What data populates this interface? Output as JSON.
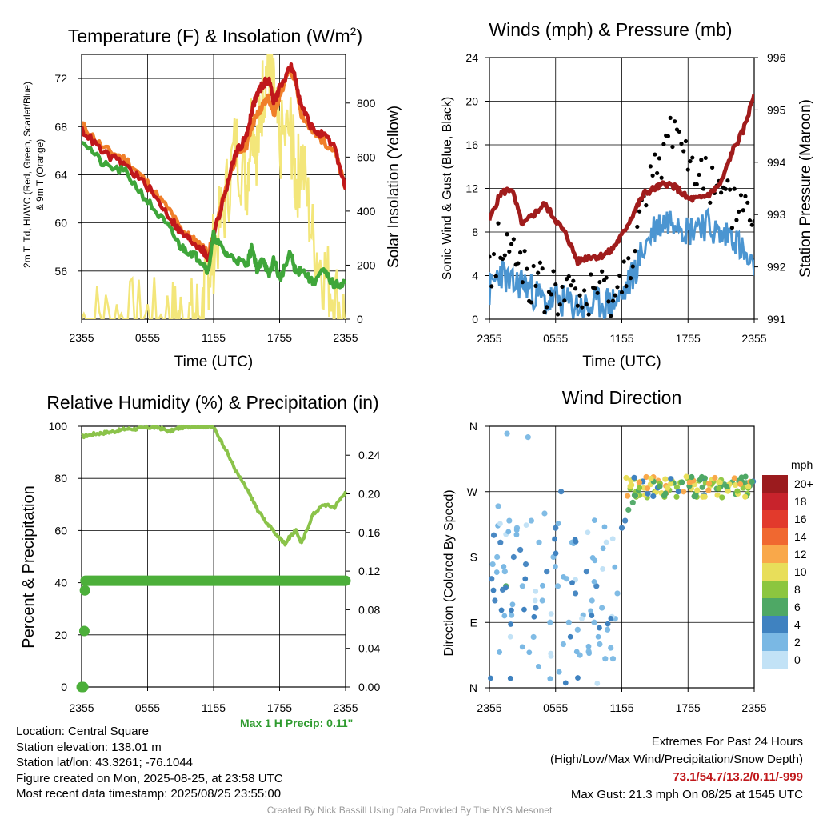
{
  "chart_data": [
    {
      "type": "line",
      "title": "Temperature (F) & Insolation (W/m²)",
      "xlabel": "Time (UTC)",
      "ylabel": "2m T, T_d, HI/WC (Red, Green, Scarlet/Blue) & 9m T (Orange)",
      "y2label": "Solar Insolation (Yellow)",
      "x_ticks": [
        "2355",
        "0555",
        "1155",
        "1755",
        "2355"
      ],
      "ylim": [
        52,
        74
      ],
      "y_ticks": [
        56,
        60,
        64,
        68,
        72
      ],
      "y2lim": [
        0,
        980
      ],
      "y2_ticks": [
        0,
        200,
        400,
        600,
        800
      ],
      "x_hours": [
        0,
        2,
        4,
        6,
        8,
        9,
        10,
        11,
        11.5,
        12,
        13,
        14,
        15,
        15.5,
        16,
        16.5,
        17,
        17.5,
        18,
        19,
        19.5,
        20,
        21,
        22,
        23,
        24
      ],
      "series": [
        {
          "name": "9m T",
          "color": "#f07f2a",
          "values": [
            68.2,
            66.2,
            65.3,
            63.3,
            61.0,
            59.5,
            58.7,
            58.0,
            57.3,
            59.0,
            62.5,
            65.5,
            66.5,
            68.2,
            69.0,
            69.8,
            70.5,
            69.0,
            70.6,
            72.8,
            71.5,
            69.0,
            67.5,
            66.8,
            66.0,
            62.8
          ]
        },
        {
          "name": "2m T",
          "color": "#c0181b",
          "values": [
            67.8,
            65.8,
            64.8,
            63.0,
            60.5,
            59.2,
            58.5,
            57.8,
            57.0,
            59.0,
            62.3,
            65.8,
            67.2,
            69.5,
            70.8,
            71.5,
            72.0,
            70.0,
            71.2,
            73.0,
            71.8,
            69.6,
            67.8,
            67.2,
            66.3,
            62.8
          ]
        },
        {
          "name": "2m Td",
          "color": "#3fa63a",
          "values": [
            67.0,
            64.8,
            64.2,
            61.8,
            59.5,
            58.0,
            57.5,
            56.8,
            56.0,
            59.0,
            57.5,
            57.0,
            56.5,
            58.0,
            56.0,
            57.2,
            55.5,
            57.0,
            55.3,
            57.5,
            55.8,
            56.2,
            55.0,
            56.0,
            54.8,
            55.1
          ]
        },
        {
          "name": "Solar Insolation",
          "axis": "right",
          "color": "#f3e67a",
          "values": [
            0,
            0,
            0,
            0,
            0,
            0,
            5,
            40,
            180,
            250,
            420,
            650,
            500,
            780,
            620,
            860,
            950,
            800,
            650,
            700,
            500,
            600,
            300,
            180,
            90,
            0
          ]
        }
      ]
    },
    {
      "type": "line",
      "title": "Winds (mph) & Pressure (mb)",
      "xlabel": "Time (UTC)",
      "ylabel": "Sonic Wind & Gust (Blue, Black)",
      "y2label": "Station Pressure (Maroon)",
      "x_ticks": [
        "2355",
        "0555",
        "1155",
        "1755",
        "2355"
      ],
      "ylim": [
        0,
        24
      ],
      "y_ticks": [
        0,
        4,
        8,
        12,
        16,
        20,
        24
      ],
      "y2lim": [
        991,
        996
      ],
      "y2_ticks": [
        991,
        992,
        993,
        994,
        995,
        996
      ],
      "x_hours": [
        0,
        1,
        2,
        3,
        4,
        5,
        6,
        7,
        8,
        9,
        10,
        11,
        12,
        13,
        14,
        15,
        16,
        17,
        18,
        19,
        20,
        21,
        22,
        23,
        24
      ],
      "series": [
        {
          "name": "Sonic Wind",
          "color": "#4b95d1",
          "values": [
            2.5,
            4.5,
            3.0,
            3.5,
            2.5,
            1.5,
            1.8,
            1.5,
            1.2,
            1.0,
            1.5,
            1.5,
            2.0,
            4.0,
            6.5,
            8.5,
            9.0,
            9.5,
            8.0,
            9.0,
            8.5,
            7.5,
            8.0,
            6.0,
            4.0
          ]
        },
        {
          "name": "Gust",
          "color": "#000000",
          "values": [
            4.0,
            7.5,
            6.0,
            5.5,
            3.0,
            2.5,
            2.5,
            2.0,
            2.0,
            2.0,
            2.5,
            2.0,
            3.0,
            7.0,
            10.0,
            13.0,
            16.0,
            18.5,
            14.0,
            15.0,
            12.0,
            11.0,
            10.0,
            11.0,
            9.0
          ]
        },
        {
          "name": "Station Pressure",
          "axis": "right",
          "color": "#a01c1c",
          "values": [
            992.9,
            993.4,
            993.5,
            992.8,
            993.0,
            993.2,
            992.9,
            992.6,
            992.1,
            992.2,
            992.2,
            992.3,
            992.6,
            993.0,
            993.4,
            993.5,
            993.6,
            993.5,
            993.3,
            993.3,
            993.4,
            993.6,
            994.2,
            994.6,
            995.3
          ]
        }
      ]
    },
    {
      "type": "line",
      "title": "Relative Humidity (%) & Precipitation (in)",
      "xlabel": "",
      "ylabel": "Percent & Precipitation",
      "x_ticks": [
        "2355",
        "0555",
        "1155",
        "1755",
        "2355"
      ],
      "ylim": [
        0,
        100
      ],
      "y_ticks": [
        0,
        20,
        40,
        60,
        80,
        100
      ],
      "y2lim": [
        0,
        0.27
      ],
      "y2_ticks": [
        "0.00",
        "0.04",
        "0.08",
        "0.12",
        "0.16",
        "0.20",
        "0.24"
      ],
      "x_hours": [
        0,
        1,
        2,
        3,
        4,
        5,
        6,
        7,
        8,
        9,
        10,
        11,
        12,
        13,
        14,
        15,
        15.5,
        16,
        17,
        18,
        18.5,
        19,
        19.5,
        20,
        21,
        22,
        23,
        24
      ],
      "series": [
        {
          "name": "Relative Humidity",
          "color": "#8bc34a",
          "values": [
            96,
            97,
            97.5,
            98,
            99,
            99,
            99.5,
            99.5,
            98,
            99.5,
            100,
            100,
            99.5,
            92,
            83,
            76,
            72,
            68,
            62,
            57,
            55,
            58,
            60,
            55,
            66,
            70,
            69,
            75
          ]
        },
        {
          "name": "Precipitation",
          "axis": "right",
          "color": "#4caf3a",
          "values": [
            0.0,
            0.11,
            0.11,
            0.11,
            0.11,
            0.11,
            0.11,
            0.11,
            0.11,
            0.11,
            0.11,
            0.11,
            0.11,
            0.11,
            0.11,
            0.11,
            0.11,
            0.11,
            0.11,
            0.11,
            0.11,
            0.11,
            0.11,
            0.11,
            0.11,
            0.11,
            0.11,
            0.11
          ]
        }
      ],
      "early_precip_points": [
        [
          0,
          0.0
        ],
        [
          0.15,
          0.0
        ],
        [
          0.25,
          0.058
        ],
        [
          0.3,
          0.1
        ]
      ]
    },
    {
      "type": "scatter",
      "title": "Wind Direction",
      "ylabel": "Direction (Colored By Speed)",
      "x_ticks": [
        "2355",
        "0555",
        "1155",
        "1755",
        "2355"
      ],
      "y_ticks": [
        "N",
        "E",
        "S",
        "W",
        "N"
      ],
      "ylim": [
        0,
        360
      ],
      "color_legend": {
        "unit": "mph",
        "labels": [
          "20+",
          "18",
          "16",
          "14",
          "12",
          "10",
          "8",
          "6",
          "4",
          "2",
          "0"
        ],
        "colors": [
          "#9b1b1e",
          "#c8232c",
          "#e23a2c",
          "#f06830",
          "#f9a84a",
          "#e8de5a",
          "#8cc63f",
          "#4ea865",
          "#3f82c0",
          "#7ab8e4",
          "#c2e2f6"
        ]
      },
      "points": [
        [
          0.2,
          150,
          3
        ],
        [
          0.3,
          170,
          2
        ],
        [
          0.4,
          210,
          4
        ],
        [
          0.5,
          120,
          3
        ],
        [
          0.7,
          180,
          2
        ],
        [
          0.8,
          250,
          1
        ],
        [
          1.0,
          200,
          3
        ],
        [
          1.2,
          135,
          4
        ],
        [
          1.4,
          160,
          2
        ],
        [
          1.5,
          140,
          6
        ],
        [
          1.6,
          350,
          1
        ],
        [
          1.8,
          230,
          2
        ],
        [
          2.0,
          100,
          2
        ],
        [
          2.2,
          180,
          3
        ],
        [
          2.5,
          220,
          2
        ],
        [
          2.8,
          190,
          4
        ],
        [
          3.0,
          140,
          2
        ],
        [
          3.3,
          170,
          3
        ],
        [
          3.5,
          345,
          1
        ],
        [
          3.8,
          230,
          2
        ],
        [
          4.0,
          70,
          2
        ],
        [
          4.2,
          110,
          3
        ],
        [
          4.5,
          200,
          2
        ],
        [
          4.8,
          120,
          1
        ],
        [
          5.0,
          240,
          2
        ],
        [
          5.2,
          160,
          3
        ],
        [
          5.5,
          90,
          1
        ],
        [
          5.8,
          180,
          2
        ],
        [
          6.0,
          220,
          3
        ],
        [
          6.2,
          140,
          2
        ],
        [
          6.5,
          270,
          3
        ],
        [
          6.7,
          60,
          1
        ],
        [
          7.0,
          150,
          2
        ],
        [
          7.2,
          90,
          1
        ],
        [
          7.5,
          200,
          2
        ],
        [
          7.8,
          130,
          3
        ],
        [
          8.0,
          80,
          2
        ],
        [
          8.2,
          45,
          1
        ],
        [
          8.5,
          100,
          1
        ],
        [
          8.8,
          160,
          3
        ],
        [
          9.0,
          50,
          2
        ],
        [
          9.3,
          120,
          2
        ],
        [
          9.5,
          90,
          1
        ],
        [
          9.7,
          140,
          3
        ],
        [
          10.0,
          60,
          2
        ],
        [
          10.2,
          110,
          1
        ],
        [
          10.5,
          40,
          2
        ],
        [
          10.7,
          80,
          2
        ],
        [
          11.0,
          55,
          1
        ],
        [
          11.2,
          40,
          2
        ],
        [
          11.4,
          95,
          2
        ],
        [
          11.6,
          130,
          1
        ],
        [
          12.0,
          220,
          4
        ],
        [
          12.3,
          230,
          4
        ],
        [
          12.6,
          245,
          5
        ],
        [
          13.0,
          255,
          6
        ],
        [
          13.3,
          270,
          7
        ],
        [
          13.6,
          265,
          8
        ],
        [
          14.0,
          275,
          9
        ],
        [
          14.3,
          262,
          7
        ],
        [
          14.6,
          280,
          10
        ],
        [
          15.0,
          270,
          8
        ],
        [
          15.3,
          285,
          11
        ],
        [
          15.6,
          268,
          9
        ],
        [
          16.0,
          278,
          12
        ],
        [
          16.3,
          272,
          8
        ],
        [
          16.6,
          284,
          10
        ],
        [
          17.0,
          276,
          7
        ],
        [
          17.3,
          282,
          9
        ],
        [
          17.6,
          270,
          11
        ],
        [
          18.0,
          288,
          8
        ],
        [
          18.3,
          274,
          10
        ],
        [
          18.6,
          280,
          9
        ],
        [
          19.0,
          285,
          7
        ],
        [
          19.3,
          276,
          6
        ],
        [
          19.6,
          282,
          8
        ],
        [
          20.0,
          278,
          9
        ],
        [
          20.3,
          284,
          7
        ],
        [
          20.6,
          274,
          6
        ],
        [
          21.0,
          286,
          8
        ],
        [
          21.3,
          280,
          5
        ],
        [
          21.6,
          276,
          7
        ],
        [
          22.0,
          283,
          6
        ],
        [
          22.3,
          279,
          9
        ],
        [
          22.6,
          285,
          5
        ],
        [
          23.0,
          275,
          7
        ],
        [
          23.3,
          282,
          6
        ],
        [
          23.6,
          278,
          5
        ],
        [
          23.9,
          284,
          4
        ]
      ]
    }
  ],
  "footer": {
    "location": "Location: Central Square",
    "elevation": "Station elevation: 138.01 m",
    "latlon": "Station lat/lon: 43.3261; -76.1044",
    "created": "Figure created on Mon, 2025-08-25, at 23:58 UTC",
    "recent": "Most recent data timestamp: 2025/08/25 23:55:00",
    "extremes_title": "Extremes For Past 24 Hours",
    "extremes_sub": "(High/Low/Max Wind/Precipitation/Snow Depth)",
    "extremes_values": "73.1/54.7/13.2/0.11/-999",
    "max_gust": "Max Gust: 21.3 mph On 08/25 at 1545 UTC",
    "max_precip": "Max 1 H Precip: 0.11\"",
    "credit": "Created By Nick Bassill Using Data Provided By The NYS Mesonet"
  }
}
